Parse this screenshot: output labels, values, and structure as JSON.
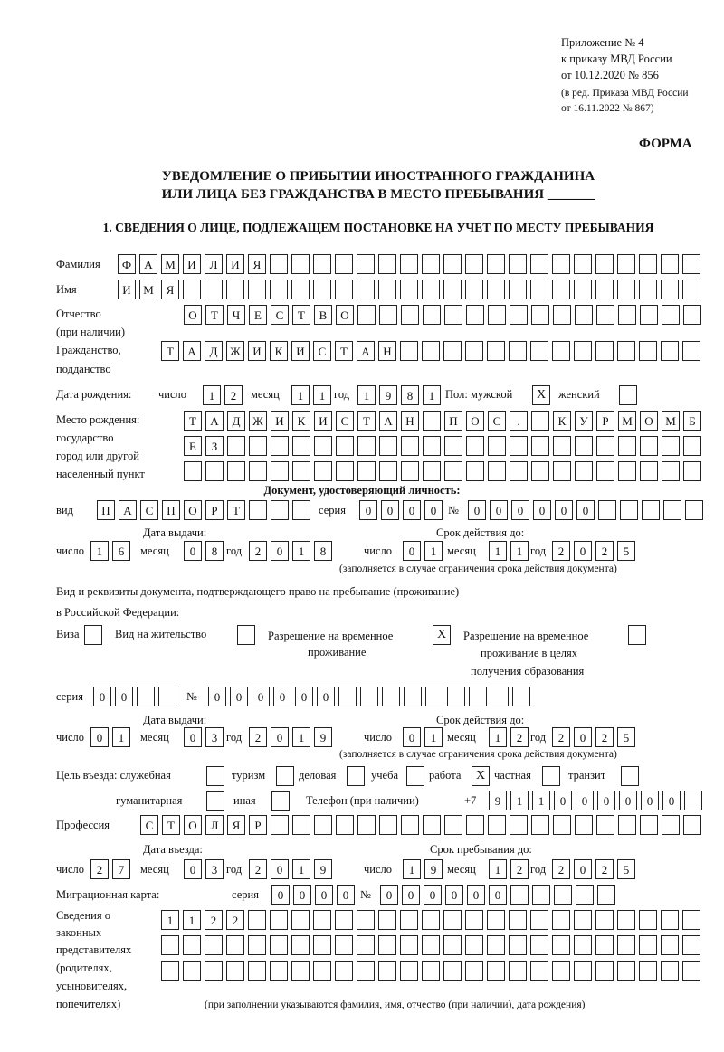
{
  "header": {
    "appendix": "Приложение № 4",
    "order": "к приказу МВД России",
    "date": "от 10.12.2020 № 856",
    "edition1": "(в ред. Приказа МВД России",
    "edition2": "от 16.11.2022 № 867)",
    "form": "ФОРМА",
    "title1": "УВЕДОМЛЕНИЕ О ПРИБЫТИИ ИНОСТРАННОГО ГРАЖДАНИНА",
    "title2": "ИЛИ ЛИЦА БЕЗ ГРАЖДАНСТВА В МЕСТО ПРЕБЫВАНИЯ _______",
    "section1": "1. СВЕДЕНИЯ О ЛИЦЕ, ПОДЛЕЖАЩЕМ ПОСТАНОВКЕ НА УЧЕТ ПО МЕСТУ ПРЕБЫВАНИЯ"
  },
  "labels": {
    "surname": "Фамилия",
    "name": "Имя",
    "patronymic": "Отчество",
    "patronymic2": "(при наличии)",
    "citizenship": "Гражданство,",
    "citizenship2": "подданство",
    "birth_date": "Дата рождения:",
    "day": "число",
    "month": "месяц",
    "year": "год",
    "sex": "Пол: мужской",
    "female": "женский",
    "birth_place": "Место рождения:",
    "bp2": "государство",
    "bp3": "город или другой",
    "bp4": "населенный пункт",
    "id_doc": "Документ, удостоверяющий личность:",
    "kind": "вид",
    "series": "серия",
    "number": "№",
    "issue_date": "Дата выдачи:",
    "valid_until": "Срок действия до:",
    "note_validity": "(заполняется в случае ограничения срока действия документа)",
    "stay_doc1": "Вид и реквизиты документа, подтверждающего право на пребывание (проживание)",
    "stay_doc2": "в Российской Федерации:",
    "visa": "Виза",
    "residence": "Вид на жительство",
    "trp1": "Разрешение на временное",
    "trp2": "проживание",
    "trpe1": "Разрешение на временное",
    "trpe2": "проживание в целях",
    "trpe3": "получения образования",
    "purpose": "Цель въезда: служебная",
    "tourism": "туризм",
    "business": "деловая",
    "study": "учеба",
    "work": "работа",
    "private": "частная",
    "transit": "транзит",
    "humanitarian": "гуманитарная",
    "other": "иная",
    "phone": "Телефон (при наличии)",
    "phone_prefix": "+7",
    "profession": "Профессия",
    "entry_date": "Дата въезда:",
    "stay_until": "Срок пребывания до:",
    "migration_card": "Миграционная карта:",
    "reps1": "Сведения о",
    "reps2": "законных",
    "reps3": "представителях",
    "reps4": "(родителях,",
    "reps5": "усыновителях,",
    "reps6": "попечителях)",
    "reps_note": "(при заполнении указываются фамилия, имя, отчество (при наличии), дата рождения)"
  },
  "values": {
    "surname": "ФАМИЛИЯ",
    "name": "ИМЯ",
    "patronymic": "ОТЧЕСТВО",
    "citizenship": "ТАДЖИКИСТАН",
    "birth_day": "12",
    "birth_month": "11",
    "birth_year": "1981",
    "sex_male": "X",
    "sex_female": "",
    "birth_place1": "ТАДЖИКИСТАН ПОС. КУРМОМБ",
    "birth_place2": "ЕЗ",
    "birth_place3": "",
    "id_kind": "ПАСПОРТ",
    "id_series": "0000",
    "id_number": "000000",
    "id_issue_day": "16",
    "id_issue_month": "08",
    "id_issue_year": "2018",
    "id_valid_day": "01",
    "id_valid_month": "11",
    "id_valid_year": "2025",
    "visa": "",
    "residence": "",
    "trp": "X",
    "trp_education": "",
    "stay_series": "00",
    "stay_number": "000000",
    "stay_issue_day": "01",
    "stay_issue_month": "03",
    "stay_issue_year": "2019",
    "stay_valid_day": "01",
    "stay_valid_month": "12",
    "stay_valid_year": "2025",
    "purpose": {
      "service": "",
      "tourism": "",
      "business": "",
      "study": "",
      "work": "X",
      "private": "",
      "transit": "",
      "humanitarian": "",
      "other": ""
    },
    "phone": "911000000",
    "profession": "СТОЛЯР",
    "entry_day": "27",
    "entry_month": "03",
    "entry_year": "2019",
    "stay_day": "19",
    "stay_month": "12",
    "stay_year": "2025",
    "mc_series": "0000",
    "mc_number": "000000",
    "reps1": "1122",
    "reps2": "",
    "reps3": ""
  }
}
